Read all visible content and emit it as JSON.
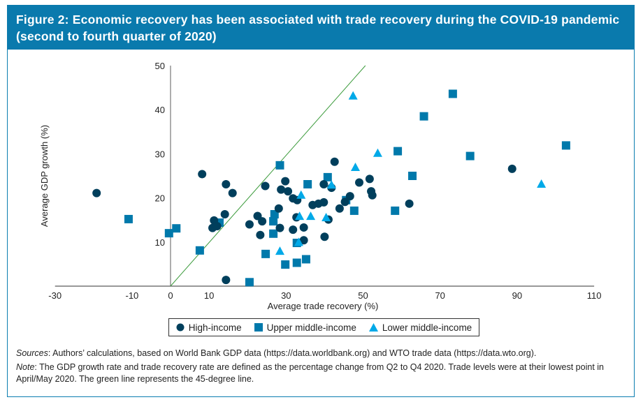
{
  "title": "Figure 2: Economic recovery has been associated with trade recovery during the COVID-19 pandemic (second to fourth quarter of 2020)",
  "colors": {
    "header": "#0a7aad",
    "high_income": "#003f5c",
    "upper_middle_income": "#0079ab",
    "lower_middle_income": "#00a9e8",
    "reference_line": "#3a9a3a"
  },
  "chart_data": {
    "type": "scatter",
    "xlabel": "Average trade recovery (%)",
    "ylabel": "Average GDP growth (%)",
    "xlim": [
      -30,
      110
    ],
    "ylim": [
      0,
      50
    ],
    "xticks": [
      -30,
      -10,
      0,
      10,
      30,
      50,
      70,
      90,
      110
    ],
    "yticks": [
      10,
      20,
      30,
      40,
      50
    ],
    "grid": false,
    "legend_placement": "bottom",
    "reference_line": {
      "label": "45-degree line",
      "from": [
        0,
        0
      ],
      "to": [
        50.6,
        50
      ]
    },
    "series": [
      {
        "name": "High-income",
        "marker": "circle",
        "points": [
          [
            -19.2,
            21.1
          ],
          [
            8.2,
            25.4
          ],
          [
            14.4,
            23.1
          ],
          [
            16.1,
            21.1
          ],
          [
            14.1,
            16.3
          ],
          [
            11.3,
            14.9
          ],
          [
            10.9,
            13.2
          ],
          [
            12.1,
            13.6
          ],
          [
            14.4,
            1.4
          ],
          [
            20.5,
            14.0
          ],
          [
            22.6,
            15.9
          ],
          [
            23.8,
            14.7
          ],
          [
            23.3,
            11.6
          ],
          [
            24.6,
            22.7
          ],
          [
            28.1,
            17.6
          ],
          [
            28.4,
            13.2
          ],
          [
            28.7,
            21.9
          ],
          [
            29.8,
            23.8
          ],
          [
            30.5,
            21.5
          ],
          [
            31.8,
            19.9
          ],
          [
            32.9,
            19.5
          ],
          [
            32.7,
            15.6
          ],
          [
            31.8,
            12.8
          ],
          [
            34.6,
            13.3
          ],
          [
            34.6,
            10.4
          ],
          [
            36.9,
            18.4
          ],
          [
            38.4,
            18.7
          ],
          [
            39.8,
            19.0
          ],
          [
            39.8,
            23.1
          ],
          [
            40.0,
            11.2
          ],
          [
            41.0,
            15.1
          ],
          [
            41.8,
            22.3
          ],
          [
            42.6,
            28.2
          ],
          [
            43.9,
            17.6
          ],
          [
            46.6,
            20.4
          ],
          [
            45.3,
            19.1
          ],
          [
            49.0,
            23.5
          ],
          [
            51.7,
            24.3
          ],
          [
            52.1,
            21.5
          ],
          [
            52.4,
            20.6
          ],
          [
            62.0,
            18.7
          ],
          [
            88.7,
            26.6
          ]
        ]
      },
      {
        "name": "Upper middle-income",
        "marker": "square",
        "points": [
          [
            -10.9,
            15.2
          ],
          [
            -0.4,
            12.0
          ],
          [
            1.5,
            13.1
          ],
          [
            7.6,
            8.1
          ],
          [
            12.7,
            14.4
          ],
          [
            20.5,
            0.9
          ],
          [
            24.7,
            7.3
          ],
          [
            26.7,
            11.9
          ],
          [
            26.7,
            14.7
          ],
          [
            27.0,
            16.3
          ],
          [
            28.4,
            27.4
          ],
          [
            29.8,
            4.9
          ],
          [
            32.8,
            5.3
          ],
          [
            32.8,
            9.8
          ],
          [
            35.2,
            6.1
          ],
          [
            35.6,
            23.1
          ],
          [
            40.8,
            24.7
          ],
          [
            45.6,
            19.5
          ],
          [
            47.7,
            17.1
          ],
          [
            58.3,
            17.1
          ],
          [
            59.0,
            30.6
          ],
          [
            62.8,
            25.0
          ],
          [
            65.8,
            38.5
          ],
          [
            73.3,
            43.6
          ],
          [
            77.8,
            29.5
          ],
          [
            102.7,
            31.9
          ]
        ]
      },
      {
        "name": "Lower middle-income",
        "marker": "triangle",
        "points": [
          [
            28.4,
            7.9
          ],
          [
            33.9,
            20.6
          ],
          [
            33.5,
            15.8
          ],
          [
            36.4,
            15.8
          ],
          [
            33.3,
            9.9
          ],
          [
            40.4,
            15.5
          ],
          [
            41.8,
            22.9
          ],
          [
            47.4,
            43.1
          ],
          [
            53.8,
            30.1
          ],
          [
            48.0,
            26.9
          ],
          [
            96.3,
            23.1
          ]
        ]
      }
    ]
  },
  "notes": {
    "sources_label": "Sources",
    "sources_text": ": Authors’ calculations, based on World Bank GDP data (https://data.worldbank.org) and WTO trade data (https://data.wto.org).",
    "note_label": "Note",
    "note_text": ": The GDP growth rate and trade recovery rate are defined as the percentage change from Q2 to Q4 2020. Trade levels were at their lowest point in April/May 2020. The green line represents the 45-degree line."
  }
}
